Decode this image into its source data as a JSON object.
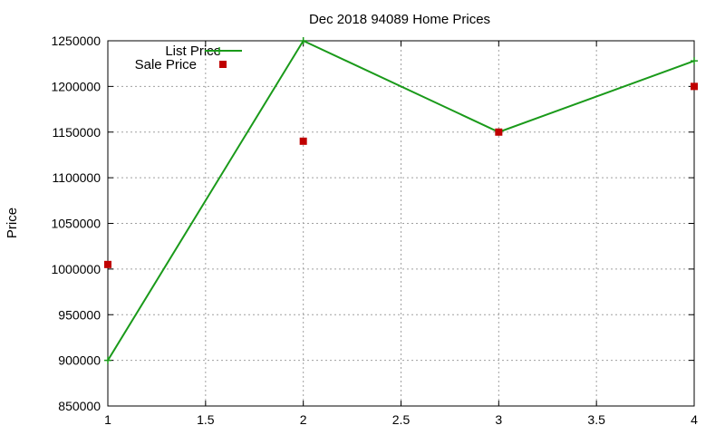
{
  "chart_data": {
    "type": "line",
    "title": "Dec 2018 94089 Home Prices",
    "xlabel": "",
    "ylabel": "Price",
    "xlim": [
      1,
      4
    ],
    "ylim": [
      850000,
      1250000
    ],
    "x_ticks": [
      "1",
      "1.5",
      "2",
      "2.5",
      "3",
      "3.5",
      "4"
    ],
    "y_ticks": [
      "850000",
      "900000",
      "950000",
      "1000000",
      "1050000",
      "1100000",
      "1150000",
      "1200000",
      "1250000"
    ],
    "grid": true,
    "legend_position": "top-left",
    "series": [
      {
        "name": "List Price",
        "style": "line-with-plus-markers",
        "color": "#1a9a1a",
        "x": [
          1,
          2,
          3,
          4
        ],
        "values": [
          900000,
          1250000,
          1150000,
          1228000
        ]
      },
      {
        "name": "Sale Price",
        "style": "square-markers",
        "color": "#c00000",
        "x": [
          1,
          2,
          3,
          4
        ],
        "values": [
          1005000,
          1140000,
          1150000,
          1200000
        ]
      }
    ]
  }
}
